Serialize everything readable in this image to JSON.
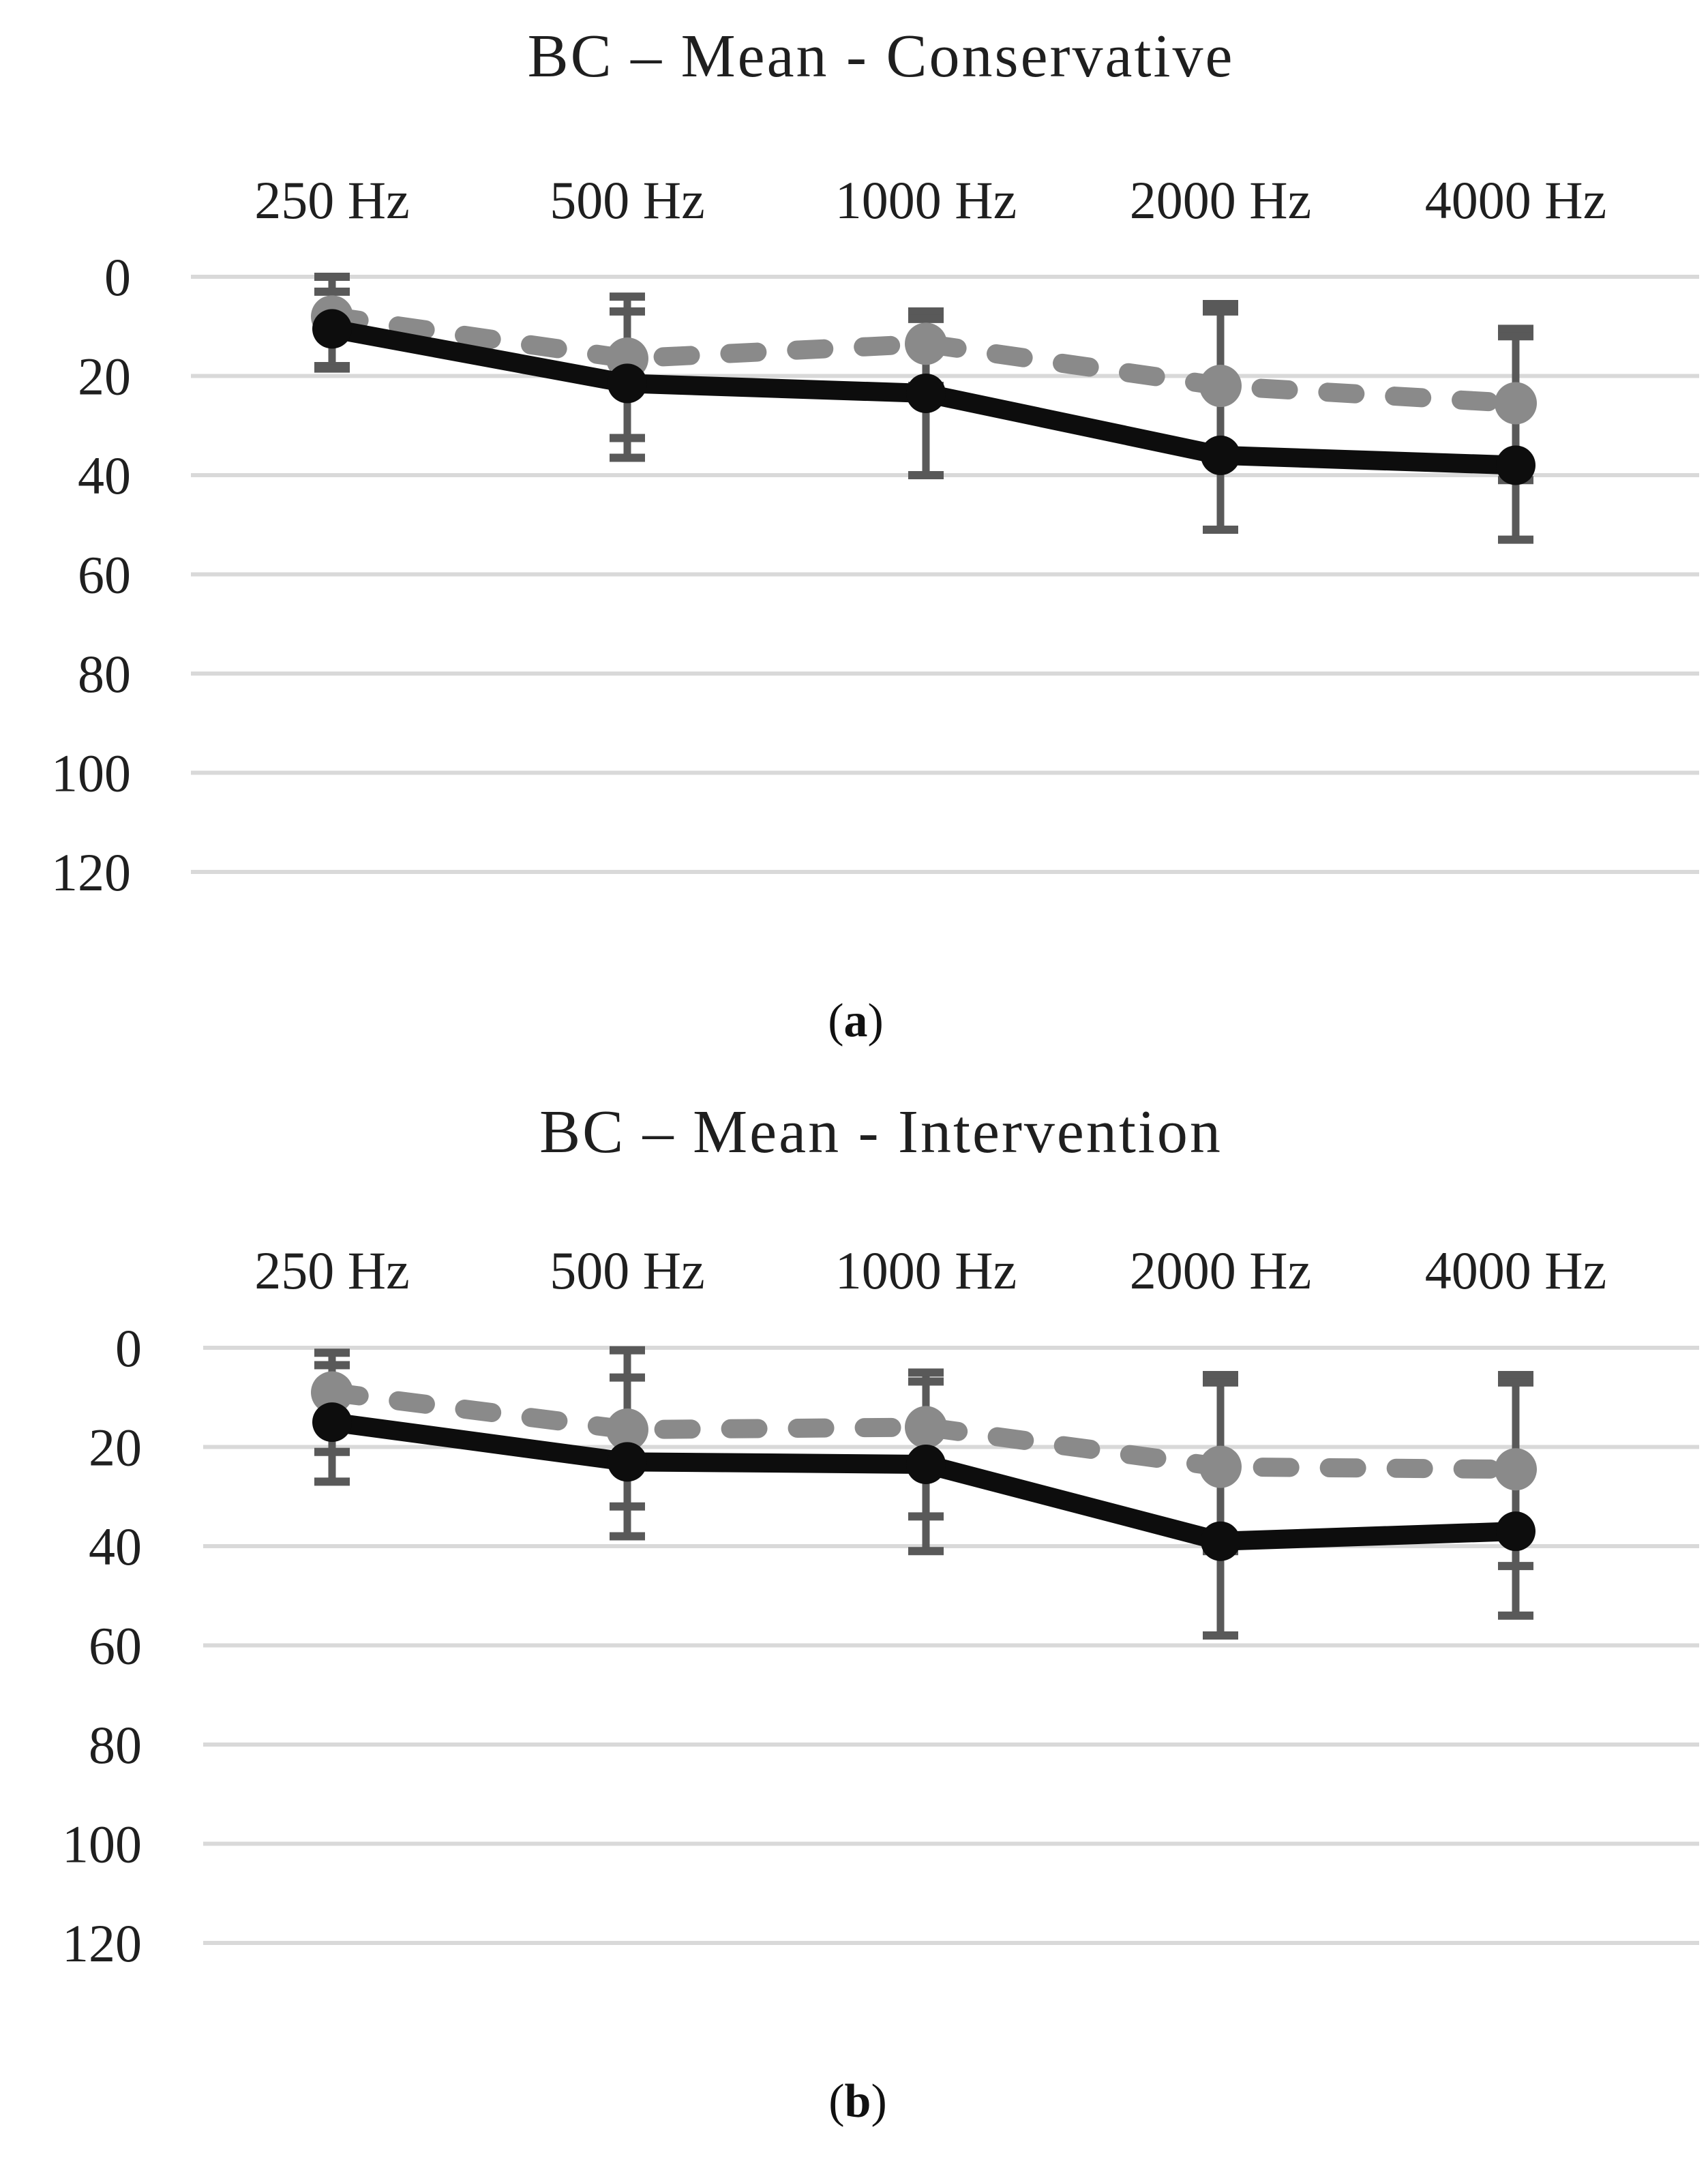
{
  "page": {
    "background": "#ffffff"
  },
  "styles": {
    "grid_color": "#d9d9d9",
    "error_bar_color": "#595959",
    "text_color": "#1f1f1f",
    "gray_series_color": "#8a8a8a",
    "black_series_color": "#0d0d0d"
  },
  "chart_data": [
    {
      "type": "line",
      "title": "BC – Mean - Conservative",
      "panel_label": "(a)",
      "categories": [
        "250 Hz",
        "500 Hz",
        "1000 Hz",
        "2000 Hz",
        "4000 Hz"
      ],
      "y_ticks": [
        "0",
        "20",
        "40",
        "60",
        "80",
        "100",
        "120"
      ],
      "ylim": [
        0,
        120
      ],
      "y_axis_inverted": true,
      "grid": true,
      "legend": "none",
      "series": [
        {
          "name": "gray_dashed",
          "color": "#8a8a8a",
          "line_style": "dashed",
          "values": [
            8,
            16.5,
            13.5,
            22,
            25.5
          ],
          "error_low": [
            0,
            4,
            7,
            5.5,
            10.5
          ],
          "error_high": [
            18,
            32.5,
            22,
            37,
            41
          ]
        },
        {
          "name": "black_solid",
          "color": "#0d0d0d",
          "line_style": "solid",
          "values": [
            10.5,
            21.5,
            23.5,
            36,
            38
          ],
          "error_low": [
            3,
            7,
            8.5,
            7,
            12
          ],
          "error_high": [
            18.5,
            36.5,
            40,
            51,
            53
          ]
        }
      ]
    },
    {
      "type": "line",
      "title": "BC – Mean - Intervention",
      "panel_label": "(b)",
      "categories": [
        "250 Hz",
        "500 Hz",
        "1000 Hz",
        "2000 Hz",
        "4000 Hz"
      ],
      "y_ticks": [
        "0",
        "20",
        "40",
        "60",
        "80",
        "100",
        "120"
      ],
      "ylim": [
        0,
        120
      ],
      "y_axis_inverted": true,
      "grid": true,
      "legend": "none",
      "series": [
        {
          "name": "gray_dashed",
          "color": "#8a8a8a",
          "line_style": "dashed",
          "values": [
            9,
            16.5,
            16,
            24,
            24.5
          ],
          "error_low": [
            1,
            0.5,
            5,
            5.5,
            5.5
          ],
          "error_high": [
            21,
            32,
            34,
            41,
            44
          ]
        },
        {
          "name": "black_solid",
          "color": "#0d0d0d",
          "line_style": "solid",
          "values": [
            15,
            23,
            23.5,
            39,
            37
          ],
          "error_low": [
            3.5,
            6,
            6.8,
            7,
            7
          ],
          "error_high": [
            27,
            38,
            41,
            58,
            54
          ]
        }
      ]
    }
  ]
}
